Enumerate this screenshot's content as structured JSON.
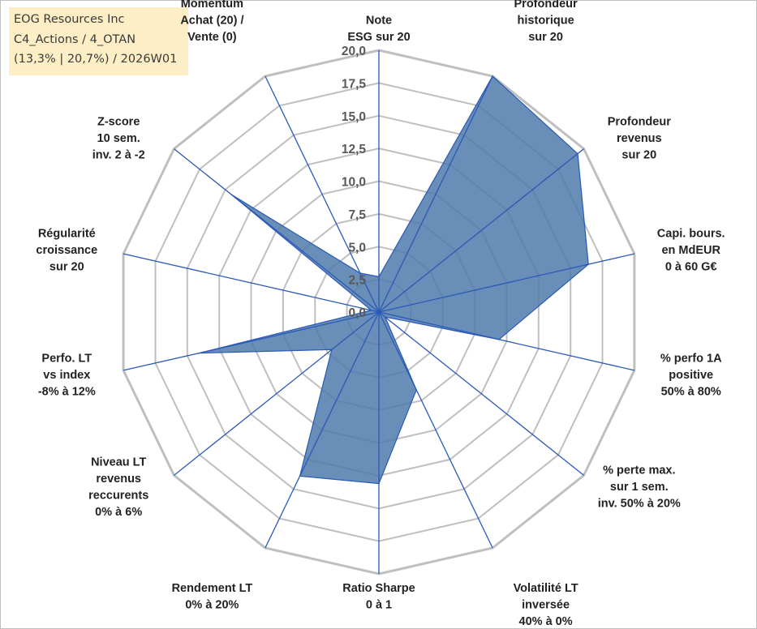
{
  "title_box": {
    "line1": "EOG Resources Inc",
    "line2": "C4_Actions / 4_OTAN",
    "line3": "(13,3% | 20,7%) / 2026W01"
  },
  "colors": {
    "fill": "#4f7aaa",
    "outline": "#2a59b8",
    "axis": "#2a59b8",
    "grid": "#bfbfbf",
    "title_bg": "#fdeec5"
  },
  "chart_data": {
    "type": "radar",
    "title": "",
    "rmin": 0,
    "rmax": 20,
    "tick_step": 2.5,
    "ticks": [
      "0,0",
      "2,5",
      "5,0",
      "7,5",
      "10,0",
      "12,5",
      "15,0",
      "17,5",
      "20,0"
    ],
    "grid": true,
    "legend": "none",
    "categories": [
      [
        "Note",
        "ESG sur 20"
      ],
      [
        "Profondeur",
        "historique",
        "sur 20"
      ],
      [
        "Profondeur",
        "revenus",
        "sur 20"
      ],
      [
        "Capi. bours.",
        "en MdEUR",
        "0 à 60 G€"
      ],
      [
        "% perfo 1A",
        "positive",
        "50% à 80%"
      ],
      [
        "% perte max.",
        "sur 1 sem.",
        "inv. 50% à 20%"
      ],
      [
        "Volatilité LT",
        "inversée",
        "40% à 0%"
      ],
      [
        "Ratio Sharpe",
        "0 à 1"
      ],
      [
        "Rendement LT",
        "0% à 20%"
      ],
      [
        "Niveau LT",
        "revenus",
        "reccurents",
        "0% à 6%"
      ],
      [
        "Perfo. LT",
        "vs index",
        "-8% à 12%"
      ],
      [
        "Régularité",
        "croissance",
        "sur 20"
      ],
      [
        "Z-score",
        "10 sem.",
        "inv. 2 à -2"
      ],
      [
        "Momentum",
        "Achat (20) /",
        "Vente (0)"
      ]
    ],
    "values": [
      2.7,
      20.0,
      19.4,
      16.4,
      9.4,
      0.6,
      6.6,
      13.1,
      13.9,
      4.6,
      14.1,
      0.6,
      14.4,
      3.3
    ]
  }
}
